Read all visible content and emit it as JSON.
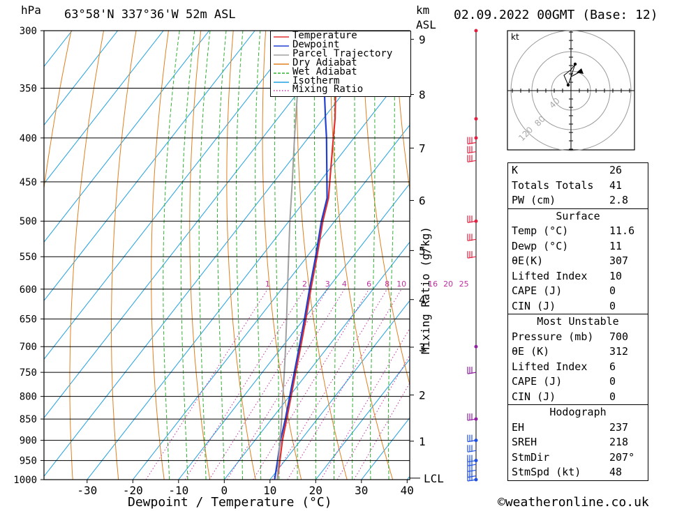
{
  "header": {
    "pressure_unit": "hPa",
    "location": "63°58'N 337°36'W 52m ASL",
    "km_unit": "km",
    "asl_unit": "ASL",
    "datetime": "02.09.2022 00GMT (Base: 12)"
  },
  "axis": {
    "x_label": "Dewpoint / Temperature (°C)",
    "mixing_ratio_label": "Mixing Ratio (g/kg)",
    "lcl_label": "LCL"
  },
  "legend": [
    {
      "name": "Temperature",
      "color": "#e03030",
      "style": "solid"
    },
    {
      "name": "Dewpoint",
      "color": "#2040d0",
      "style": "solid"
    },
    {
      "name": "Parcel Trajectory",
      "color": "#a0a0a0",
      "style": "solid"
    },
    {
      "name": "Dry Adiabat",
      "color": "#e08020",
      "style": "solid"
    },
    {
      "name": "Wet Adiabat",
      "color": "#30b030",
      "style": "dashed"
    },
    {
      "name": "Isotherm",
      "color": "#20a0e0",
      "style": "solid"
    },
    {
      "name": "Mixing Ratio",
      "color": "#c030a0",
      "style": "dotted"
    }
  ],
  "chart_data": {
    "type": "line",
    "chart_kind": "skew-T log-P sounding",
    "title": "63°58'N 337°36'W 52m ASL",
    "xlabel": "Dewpoint / Temperature (°C)",
    "ylabel": "hPa",
    "xlim": [
      -40,
      40
    ],
    "ylim": [
      1000,
      300
    ],
    "y_scale": "log",
    "pressure_ticks": [
      300,
      350,
      400,
      450,
      500,
      550,
      600,
      650,
      700,
      750,
      800,
      850,
      900,
      950,
      1000
    ],
    "temp_ticks": [
      -30,
      -20,
      -10,
      0,
      10,
      20,
      30,
      40
    ],
    "km_ticks": [
      {
        "km": 1,
        "p": 902
      },
      {
        "km": 2,
        "p": 797
      },
      {
        "km": 3,
        "p": 701
      },
      {
        "km": 4,
        "p": 617
      },
      {
        "km": 5,
        "p": 541
      },
      {
        "km": 6,
        "p": 473
      },
      {
        "km": 7,
        "p": 411
      },
      {
        "km": 8,
        "p": 356
      },
      {
        "km": 9,
        "p": 307
      }
    ],
    "mixing_ratio_labels": [
      "1",
      "2",
      "3",
      "4",
      "6",
      "8",
      "10",
      "16",
      "20",
      "25"
    ],
    "mixing_ratio_values": [
      1,
      2,
      3,
      4,
      6,
      8,
      10,
      16,
      20,
      25
    ],
    "lcl_pressure": 996,
    "series": [
      {
        "name": "Temperature",
        "color": "#e03030",
        "points": [
          [
            1000,
            11.6
          ],
          [
            950,
            8.9
          ],
          [
            900,
            6.0
          ],
          [
            850,
            3.3
          ],
          [
            800,
            0.4
          ],
          [
            750,
            -2.7
          ],
          [
            700,
            -6.0
          ],
          [
            650,
            -9.6
          ],
          [
            600,
            -13.6
          ],
          [
            550,
            -17.8
          ],
          [
            500,
            -22.6
          ],
          [
            470,
            -25.3
          ],
          [
            450,
            -27.8
          ],
          [
            400,
            -34.5
          ],
          [
            380,
            -37.4
          ],
          [
            350,
            -42.5
          ],
          [
            300,
            -51.0
          ]
        ]
      },
      {
        "name": "Dewpoint",
        "color": "#2040d0",
        "points": [
          [
            1000,
            11.0
          ],
          [
            950,
            8.4
          ],
          [
            900,
            5.6
          ],
          [
            850,
            3.0
          ],
          [
            800,
            0.1
          ],
          [
            750,
            -3.0
          ],
          [
            700,
            -6.3
          ],
          [
            650,
            -9.9
          ],
          [
            600,
            -13.9
          ],
          [
            550,
            -18.1
          ],
          [
            500,
            -22.9
          ],
          [
            470,
            -25.6
          ],
          [
            450,
            -28.4
          ],
          [
            400,
            -36.0
          ],
          [
            380,
            -39.5
          ],
          [
            350,
            -45.0
          ],
          [
            300,
            -55.0
          ]
        ]
      },
      {
        "name": "Parcel Trajectory",
        "color": "#a0a0a0",
        "points": [
          [
            1000,
            11.6
          ],
          [
            950,
            8.6
          ],
          [
            900,
            5.5
          ],
          [
            850,
            2.2
          ],
          [
            800,
            -1.4
          ],
          [
            750,
            -5.2
          ],
          [
            700,
            -9.3
          ],
          [
            650,
            -13.8
          ],
          [
            600,
            -18.7
          ],
          [
            550,
            -24.0
          ],
          [
            500,
            -29.8
          ],
          [
            450,
            -36.0
          ],
          [
            400,
            -43.0
          ],
          [
            350,
            -50.8
          ],
          [
            310,
            -57.5
          ]
        ]
      }
    ],
    "wind_barbs_p": [
      1000,
      990,
      975,
      960,
      950,
      925,
      900,
      850,
      750,
      550,
      525,
      500,
      425,
      415,
      405
    ],
    "hodograph": {
      "unit_label": "kt",
      "ring_labels": [
        "40",
        "80",
        "120"
      ]
    }
  },
  "indices": {
    "main": [
      {
        "label": "K",
        "value": "26"
      },
      {
        "label": "Totals Totals",
        "value": "41"
      },
      {
        "label": "PW (cm)",
        "value": "2.8"
      }
    ],
    "surface": {
      "title": "Surface",
      "rows": [
        {
          "label": "Temp (°C)",
          "value": "11.6"
        },
        {
          "label": "Dewp (°C)",
          "value": "11"
        },
        {
          "label": "θE(K)",
          "value": "307"
        },
        {
          "label": "Lifted Index",
          "value": "10"
        },
        {
          "label": "CAPE (J)",
          "value": "0"
        },
        {
          "label": "CIN (J)",
          "value": "0"
        }
      ]
    },
    "most_unstable": {
      "title": "Most Unstable",
      "rows": [
        {
          "label": "Pressure (mb)",
          "value": "700"
        },
        {
          "label": "θE (K)",
          "value": "312"
        },
        {
          "label": "Lifted Index",
          "value": "6"
        },
        {
          "label": "CAPE (J)",
          "value": "0"
        },
        {
          "label": "CIN (J)",
          "value": "0"
        }
      ]
    },
    "hodograph": {
      "title": "Hodograph",
      "rows": [
        {
          "label": "EH",
          "value": "237"
        },
        {
          "label": "SREH",
          "value": "218"
        },
        {
          "label": "StmDir",
          "value": "207°"
        },
        {
          "label": "StmSpd (kt)",
          "value": "48"
        }
      ]
    }
  },
  "footer": {
    "copyright": "©weatheronline.co.uk"
  }
}
